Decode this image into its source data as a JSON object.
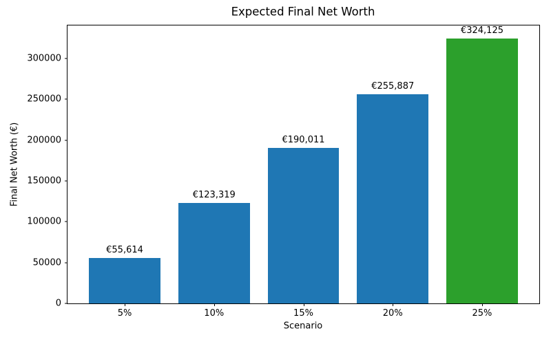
{
  "chart_data": {
    "type": "bar",
    "title": "Expected Final Net Worth",
    "xlabel": "Scenario",
    "ylabel": "Final Net Worth (€)",
    "categories": [
      "5%",
      "10%",
      "15%",
      "20%",
      "25%"
    ],
    "values": [
      55614,
      123319,
      190011,
      255887,
      324125
    ],
    "bar_labels": [
      "€55,614",
      "€123,319",
      "€190,011",
      "€255,887",
      "€324,125"
    ],
    "bar_colors": [
      "#1f77b4",
      "#1f77b4",
      "#1f77b4",
      "#1f77b4",
      "#2ca02c"
    ],
    "colors": {
      "default_bar": "#1f77b4",
      "highlight_bar": "#2ca02c",
      "axis": "#000000",
      "text": "#000000",
      "background": "#ffffff"
    },
    "yticks": [
      0,
      50000,
      100000,
      150000,
      200000,
      250000,
      300000
    ],
    "ytick_labels": [
      "0",
      "50000",
      "100000",
      "150000",
      "200000",
      "250000",
      "300000"
    ],
    "ylim": [
      0,
      340331
    ],
    "xlim": [
      -0.64,
      4.64
    ],
    "bar_width": 0.8,
    "grid": false,
    "legend": null
  }
}
